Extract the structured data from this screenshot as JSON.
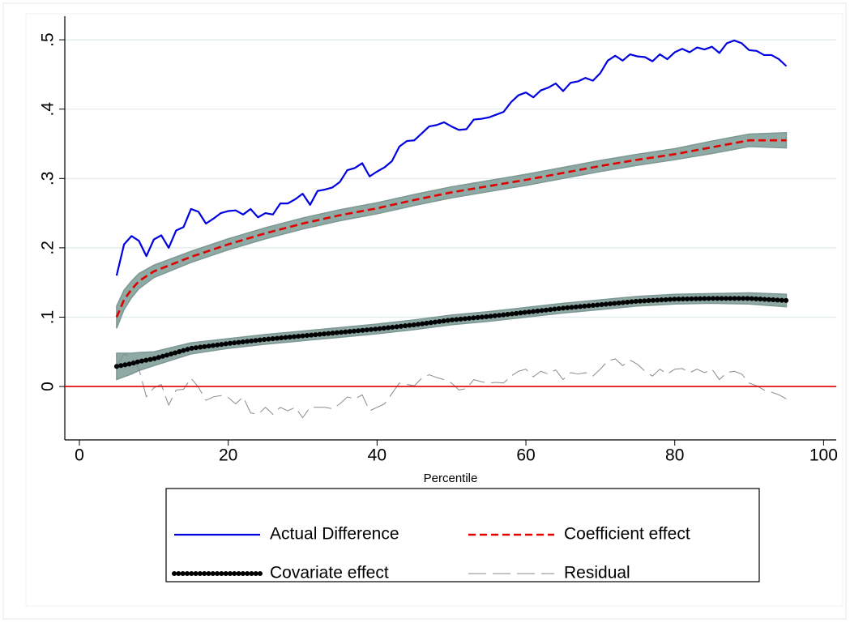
{
  "chart_data": {
    "type": "line",
    "x_label": "Percentile",
    "xlim": [
      -1.96,
      101.7
    ],
    "xticks": [
      0,
      20,
      40,
      60,
      80,
      100
    ],
    "ylim": [
      -0.077,
      0.534
    ],
    "yticks": [
      0,
      {
        "value": 0.1,
        "label": ".1"
      },
      {
        "value": 0.2,
        "label": ".2"
      },
      {
        "value": 0.3,
        "label": ".3"
      },
      {
        "value": 0.4,
        "label": ".4"
      },
      {
        "value": 0.5,
        "label": ".5"
      }
    ],
    "grid": true,
    "legend": "bottom",
    "yline": 0,
    "yline_color": "#e00000",
    "band_color": "#8fa9a4",
    "x": [
      5,
      6,
      7,
      8,
      9,
      10,
      11,
      12,
      13,
      14,
      15,
      16,
      17,
      18,
      19,
      20,
      21,
      22,
      23,
      24,
      25,
      26,
      27,
      28,
      29,
      30,
      31,
      32,
      33,
      34,
      35,
      36,
      37,
      38,
      39,
      40,
      41,
      42,
      43,
      44,
      45,
      46,
      47,
      48,
      49,
      50,
      51,
      52,
      53,
      54,
      55,
      56,
      57,
      58,
      59,
      60,
      61,
      62,
      63,
      64,
      65,
      66,
      67,
      68,
      69,
      70,
      71,
      72,
      73,
      74,
      75,
      76,
      77,
      78,
      79,
      80,
      81,
      82,
      83,
      84,
      85,
      86,
      87,
      88,
      89,
      90,
      91,
      92,
      93,
      94,
      95
    ],
    "series": [
      {
        "name": "Actual Difference",
        "color": "#0000e0",
        "style": "solid",
        "values": [
          0.16,
          0.205,
          0.217,
          0.21,
          0.188,
          0.212,
          0.218,
          0.2,
          0.225,
          0.23,
          0.256,
          0.252,
          0.235,
          0.242,
          0.25,
          0.253,
          0.254,
          0.248,
          0.256,
          0.244,
          0.25,
          0.248,
          0.264,
          0.264,
          0.27,
          0.278,
          0.262,
          0.282,
          0.284,
          0.287,
          0.295,
          0.312,
          0.315,
          0.322,
          0.303,
          0.31,
          0.316,
          0.325,
          0.346,
          0.354,
          0.355,
          0.365,
          0.375,
          0.377,
          0.381,
          0.375,
          0.37,
          0.371,
          0.385,
          0.386,
          0.388,
          0.392,
          0.396,
          0.41,
          0.42,
          0.424,
          0.417,
          0.427,
          0.431,
          0.437,
          0.426,
          0.438,
          0.44,
          0.445,
          0.441,
          0.452,
          0.47,
          0.477,
          0.47,
          0.479,
          0.476,
          0.475,
          0.469,
          0.479,
          0.472,
          0.482,
          0.487,
          0.482,
          0.489,
          0.486,
          0.49,
          0.481,
          0.495,
          0.499,
          0.495,
          0.485,
          0.484,
          0.478,
          0.478,
          0.472,
          0.462
        ]
      },
      {
        "name": "Coefficient effect",
        "color": "#e00000",
        "style": "dashed",
        "x": [
          5,
          6,
          7,
          8,
          10,
          15,
          20,
          25,
          30,
          35,
          40,
          45,
          50,
          55,
          60,
          65,
          70,
          75,
          80,
          85,
          90,
          95
        ],
        "values": [
          0.1,
          0.125,
          0.14,
          0.152,
          0.166,
          0.187,
          0.205,
          0.221,
          0.235,
          0.247,
          0.257,
          0.269,
          0.28,
          0.289,
          0.298,
          0.308,
          0.318,
          0.327,
          0.335,
          0.345,
          0.355,
          0.355
        ],
        "ci_lower": [
          0.084,
          0.111,
          0.128,
          0.141,
          0.157,
          0.179,
          0.197,
          0.213,
          0.227,
          0.239,
          0.249,
          0.261,
          0.272,
          0.281,
          0.29,
          0.3,
          0.31,
          0.319,
          0.327,
          0.336,
          0.346,
          0.344
        ],
        "ci_upper": [
          0.116,
          0.139,
          0.152,
          0.163,
          0.175,
          0.195,
          0.213,
          0.229,
          0.243,
          0.255,
          0.265,
          0.277,
          0.288,
          0.297,
          0.306,
          0.316,
          0.326,
          0.335,
          0.343,
          0.354,
          0.364,
          0.366
        ]
      },
      {
        "name": "Covariate effect",
        "color": "#000000",
        "style": "dotted",
        "x": [
          5,
          6,
          7,
          8,
          10,
          15,
          20,
          25,
          30,
          35,
          40,
          45,
          50,
          55,
          60,
          65,
          70,
          75,
          80,
          85,
          90,
          95
        ],
        "values": [
          0.029,
          0.031,
          0.033,
          0.036,
          0.04,
          0.055,
          0.062,
          0.068,
          0.073,
          0.078,
          0.083,
          0.089,
          0.096,
          0.101,
          0.107,
          0.113,
          0.118,
          0.123,
          0.126,
          0.127,
          0.127,
          0.124
        ],
        "ci_lower": [
          0.01,
          0.014,
          0.018,
          0.023,
          0.03,
          0.047,
          0.055,
          0.061,
          0.066,
          0.071,
          0.076,
          0.082,
          0.089,
          0.094,
          0.1,
          0.106,
          0.111,
          0.116,
          0.119,
          0.12,
          0.119,
          0.115
        ],
        "ci_upper": [
          0.048,
          0.048,
          0.048,
          0.049,
          0.05,
          0.063,
          0.069,
          0.075,
          0.08,
          0.085,
          0.09,
          0.096,
          0.103,
          0.108,
          0.114,
          0.12,
          0.125,
          0.13,
          0.133,
          0.134,
          0.135,
          0.133
        ]
      },
      {
        "name": "Residual",
        "color": "#8a8a8a",
        "style": "longdash",
        "values": [
          0.03,
          0.047,
          0.042,
          0.025,
          -0.015,
          -0.002,
          0.003,
          -0.027,
          -0.005,
          -0.004,
          0.012,
          -0.001,
          -0.02,
          -0.015,
          -0.013,
          -0.016,
          -0.025,
          -0.015,
          -0.038,
          -0.04,
          -0.03,
          -0.04,
          -0.03,
          -0.035,
          -0.03,
          -0.045,
          -0.03,
          -0.03,
          -0.03,
          -0.032,
          -0.025,
          -0.015,
          -0.018,
          -0.012,
          -0.035,
          -0.03,
          -0.025,
          -0.01,
          0.005,
          0.003,
          0.001,
          0.012,
          0.017,
          0.013,
          0.01,
          0.005,
          -0.005,
          -0.003,
          0.01,
          0.007,
          0.005,
          0.006,
          0.005,
          0.015,
          0.022,
          0.025,
          0.014,
          0.022,
          0.018,
          0.024,
          0.01,
          0.02,
          0.018,
          0.02,
          0.015,
          0.025,
          0.037,
          0.04,
          0.03,
          0.038,
          0.032,
          0.022,
          0.015,
          0.025,
          0.018,
          0.025,
          0.026,
          0.02,
          0.025,
          0.02,
          0.025,
          0.01,
          0.02,
          0.022,
          0.018,
          0.005,
          0.001,
          -0.005,
          -0.008,
          -0.012,
          -0.018
        ]
      }
    ]
  }
}
